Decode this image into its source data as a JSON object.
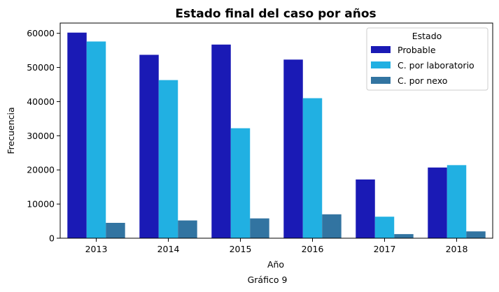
{
  "chart_data": {
    "type": "bar",
    "title": "Estado final del caso por años",
    "xlabel": "Año",
    "ylabel": "Frecuencia",
    "caption": "Gráfico 9",
    "categories": [
      "2013",
      "2014",
      "2015",
      "2016",
      "2017",
      "2018"
    ],
    "ylim": [
      0,
      63000
    ],
    "yticks": [
      0,
      10000,
      20000,
      30000,
      40000,
      50000,
      60000
    ],
    "ytick_labels": [
      "0",
      "10000",
      "20000",
      "30000",
      "40000",
      "50000",
      "60000"
    ],
    "legend": {
      "title": "Estado",
      "placement": "top-right"
    },
    "grid": false,
    "series": [
      {
        "name": "Probable",
        "color": "#1a1ab5",
        "values": [
          60200,
          53700,
          56700,
          52300,
          17200,
          20700
        ]
      },
      {
        "name": "C. por laboratorio",
        "color": "#21b0e2",
        "values": [
          57600,
          46300,
          32200,
          41000,
          6300,
          21400
        ]
      },
      {
        "name": "C. por nexo",
        "color": "#3274a1",
        "values": [
          4500,
          5200,
          5800,
          7000,
          1200,
          2000
        ]
      }
    ]
  }
}
